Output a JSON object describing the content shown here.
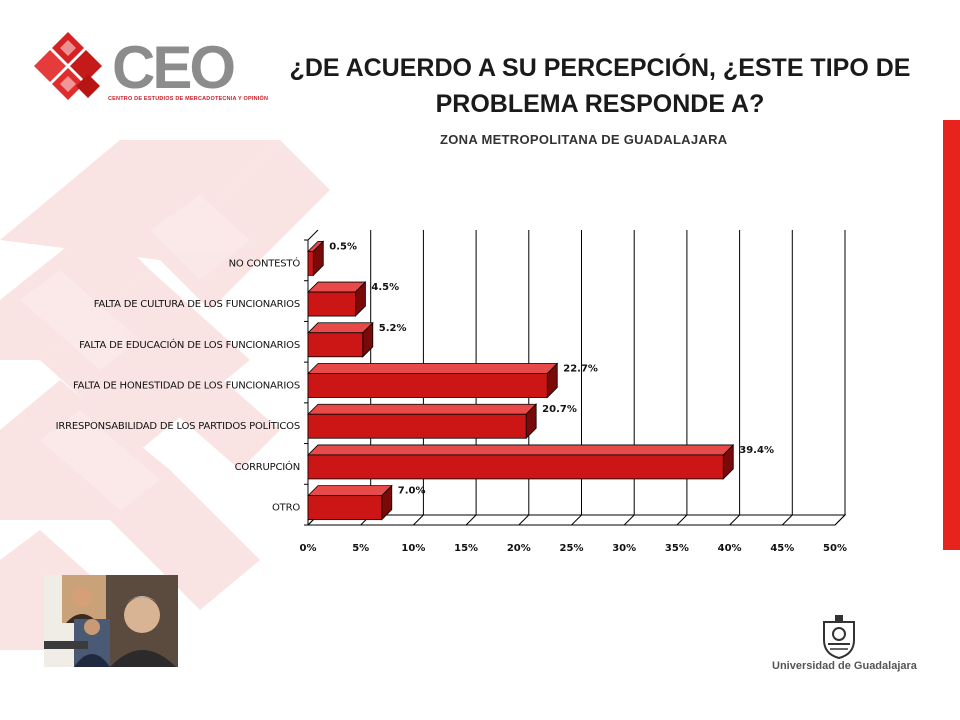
{
  "header": {
    "title_line1": "¿DE ACUERDO A SU PERCEPCIÓN, ¿ESTE TIPO DE",
    "title_line2": "PROBLEMA RESPONDE A?",
    "subtitle": "ZONA METROPOLITANA DE GUADALAJARA"
  },
  "logo": {
    "text": "CEO",
    "tagline": "CENTRO DE ESTUDIOS DE MERCADOTECNIA Y OPINIÓN"
  },
  "footer": {
    "university": "Universidad de Guadalajara"
  },
  "colors": {
    "accent_red": "#e8231e",
    "bar_front": "#cc1616",
    "bar_top": "#e84a4a",
    "bar_side": "#7a0a0a",
    "deco_pink": "#f6d4d4"
  },
  "chart_data": {
    "type": "bar",
    "orientation": "horizontal",
    "categories": [
      "NO CONTESTÓ",
      "FALTA DE CULTURA DE LOS FUNCIONARIOS",
      "FALTA DE EDUCACIÓN DE LOS FUNCIONARIOS",
      "FALTA DE HONESTIDAD DE LOS FUNCIONARIOS",
      "IRRESPONSABILIDAD DE LOS PARTIDOS POLÍTICOS",
      "CORRUPCIÓN",
      "OTRO"
    ],
    "values": [
      0.5,
      4.5,
      5.2,
      22.7,
      20.7,
      39.4,
      7.0
    ],
    "data_labels": [
      "0.5%",
      "4.5%",
      "5.2%",
      "22.7%",
      "20.7%",
      "39.4%",
      "7.0%"
    ],
    "xlim": [
      0,
      50
    ],
    "xticks": [
      "0%",
      "5%",
      "10%",
      "15%",
      "20%",
      "25%",
      "30%",
      "35%",
      "40%",
      "45%",
      "50%"
    ],
    "grid": true,
    "bar_style": "3d"
  }
}
